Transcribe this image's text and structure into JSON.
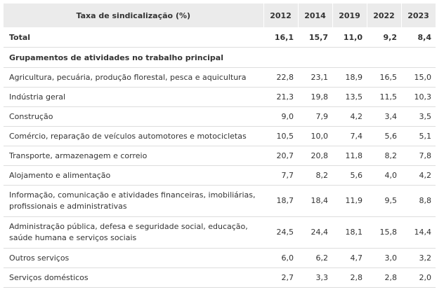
{
  "table": {
    "header_label": "Taxa de sindicalização (%)",
    "years": [
      "2012",
      "2014",
      "2019",
      "2022",
      "2023"
    ],
    "total": {
      "label": "Total",
      "values": [
        "16,1",
        "15,7",
        "11,0",
        "9,2",
        "8,4"
      ]
    },
    "group_label": "Grupamentos de atividades no trabalho principal",
    "rows": [
      {
        "label": "Agricultura, pecuária, produção florestal, pesca e aquicultura",
        "values": [
          "22,8",
          "23,1",
          "18,9",
          "16,5",
          "15,0"
        ]
      },
      {
        "label": "Indústria geral",
        "values": [
          "21,3",
          "19,8",
          "13,5",
          "11,5",
          "10,3"
        ]
      },
      {
        "label": "Construção",
        "values": [
          "9,0",
          "7,9",
          "4,2",
          "3,4",
          "3,5"
        ]
      },
      {
        "label": "Comércio, reparação de veículos automotores e motocicletas",
        "values": [
          "10,5",
          "10,0",
          "7,4",
          "5,6",
          "5,1"
        ]
      },
      {
        "label": "Transporte, armazenagem e correio",
        "values": [
          "20,7",
          "20,8",
          "11,8",
          "8,2",
          "7,8"
        ]
      },
      {
        "label": "Alojamento e alimentação",
        "values": [
          "7,7",
          "8,2",
          "5,6",
          "4,0",
          "4,2"
        ]
      },
      {
        "label": "Informação, comunicação e atividades financeiras, imobiliárias, profissionais e administrativas",
        "values": [
          "18,7",
          "18,4",
          "11,9",
          "9,5",
          "8,8"
        ]
      },
      {
        "label": "Administração pública, defesa e seguridade social, educação, saúde humana e serviços sociais",
        "values": [
          "24,5",
          "24,4",
          "18,1",
          "15,8",
          "14,4"
        ]
      },
      {
        "label": "Outros serviços",
        "values": [
          "6,0",
          "6,2",
          "4,7",
          "3,0",
          "3,2"
        ]
      },
      {
        "label": "Serviços domésticos",
        "values": [
          "2,7",
          "3,3",
          "2,8",
          "2,8",
          "2,0"
        ]
      }
    ]
  }
}
